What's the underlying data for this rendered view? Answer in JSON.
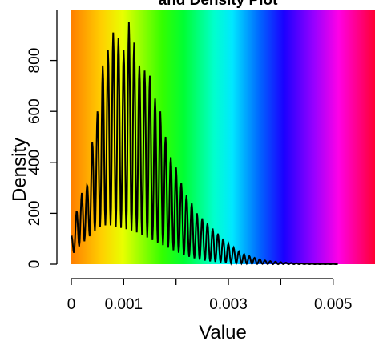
{
  "chart_data": {
    "type": "line",
    "title": "and Density Plot",
    "xlabel": "Value",
    "ylabel": "Density",
    "xlim": [
      0,
      0.0058
    ],
    "ylim": [
      0,
      1000
    ],
    "xticks": [
      0,
      0.001,
      0.002,
      0.003,
      0.004,
      0.005
    ],
    "xtick_labels": [
      "0",
      "0.001",
      "",
      "0.003",
      "",
      "0.005"
    ],
    "yticks": [
      0,
      200,
      400,
      600,
      800
    ],
    "ytick_labels": [
      "0",
      "200",
      "400",
      "600",
      "800"
    ],
    "background": "rainbow gradient (red-yellow-green-cyan-blue-magenta-red)",
    "grid": false,
    "series": [
      {
        "color": "#000000",
        "x": [
          0,
          0.0001,
          0.0002,
          0.0003,
          0.0004,
          0.0005,
          0.0006,
          0.0007,
          0.0008,
          0.0009,
          0.001,
          0.0011,
          0.0012,
          0.0013,
          0.0014,
          0.0015,
          0.0016,
          0.0017,
          0.0018,
          0.0019,
          0.002,
          0.0021,
          0.0022,
          0.0023,
          0.0024,
          0.0025,
          0.0026,
          0.0027,
          0.0028,
          0.0029,
          0.003,
          0.0031,
          0.0032,
          0.0033,
          0.0034,
          0.0035,
          0.0036,
          0.0037,
          0.0038,
          0.0039,
          0.004,
          0.0041,
          0.0042,
          0.0043,
          0.0044,
          0.0045,
          0.0046,
          0.0047,
          0.0048,
          0.0049,
          0.005
        ],
        "peaks": [
          105,
          210,
          280,
          310,
          480,
          600,
          780,
          840,
          910,
          890,
          840,
          950,
          870,
          780,
          760,
          740,
          650,
          600,
          500,
          420,
          380,
          320,
          270,
          240,
          200,
          180,
          160,
          140,
          120,
          100,
          80,
          65,
          50,
          40,
          32,
          25,
          20,
          15,
          12,
          10,
          8,
          6,
          5,
          4,
          3,
          2,
          2,
          1,
          1,
          1,
          1
        ],
        "troughs": [
          30,
          60,
          80,
          100,
          120,
          140,
          150,
          155,
          150,
          145,
          140,
          135,
          130,
          120,
          110,
          100,
          90,
          80,
          70,
          60,
          50,
          40,
          32,
          26,
          20,
          16,
          12,
          10,
          8,
          6,
          5,
          4,
          3,
          2,
          2,
          1,
          1,
          1,
          0,
          0,
          0,
          0,
          0,
          0,
          0,
          0,
          0,
          0,
          0,
          0,
          0
        ]
      }
    ]
  }
}
